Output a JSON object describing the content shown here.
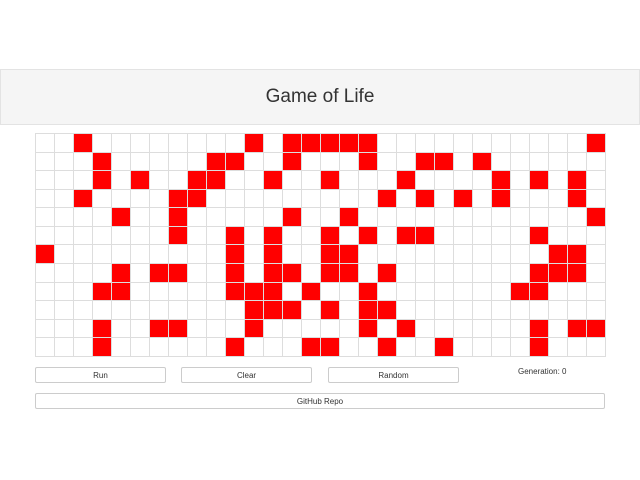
{
  "header": {
    "title": "Game of Life"
  },
  "controls": {
    "run_label": "Run",
    "clear_label": "Clear",
    "random_label": "Random",
    "generation_label": "Generation:",
    "generation_value": "0",
    "github_label": "GitHub Repo"
  },
  "colors": {
    "alive": "#ff0000",
    "dead": "#ffffff",
    "grid_line": "#dddddd"
  },
  "board": {
    "columns": 30,
    "rows": 12,
    "cells": [
      "..#........#.#####...........#",
      "...#.....##..#...#..##.#......",
      "...#.#..##..#..#...#....#.#.#.",
      "..#....##.........#.#.#.#...#.",
      "....#..#.....#..#............#",
      ".......#..#.#..#.#.##.....#...",
      "#.........#.#..##..........##.",
      "....#.##..#.##.##.#.......###.",
      "...##.....###.#..#.......##...",
      "...........###.#.##...........",
      "...#..##...#.....#.#......#.##",
      "...#......#...##..#..#....#..."
    ]
  }
}
